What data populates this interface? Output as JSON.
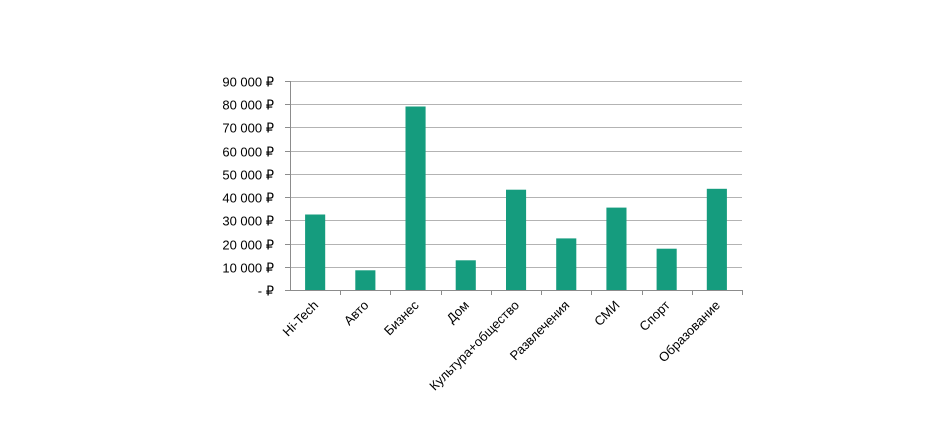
{
  "chart_data": {
    "type": "bar",
    "categories": [
      "Hi-Tech",
      "Авто",
      "Бизнес",
      "Дом",
      "Культура+общество",
      "Развлечения",
      "СМИ",
      "Спорт",
      "Образование"
    ],
    "values": [
      32500,
      8500,
      79000,
      12800,
      43200,
      22200,
      35500,
      17800,
      43600
    ],
    "ylim": [
      0,
      90000
    ],
    "yticks": [
      0,
      10000,
      20000,
      30000,
      40000,
      50000,
      60000,
      70000,
      80000,
      90000
    ],
    "ytick_labels": [
      "-  ₽",
      "10 000 ₽",
      "20 000 ₽",
      "30 000 ₽",
      "40 000 ₽",
      "50 000 ₽",
      "60 000 ₽",
      "70 000 ₽",
      "80 000 ₽",
      "90 000 ₽"
    ],
    "title": "",
    "xlabel": "",
    "ylabel": "",
    "grid": true,
    "legend": "none",
    "bar_color": "#159c7e"
  }
}
